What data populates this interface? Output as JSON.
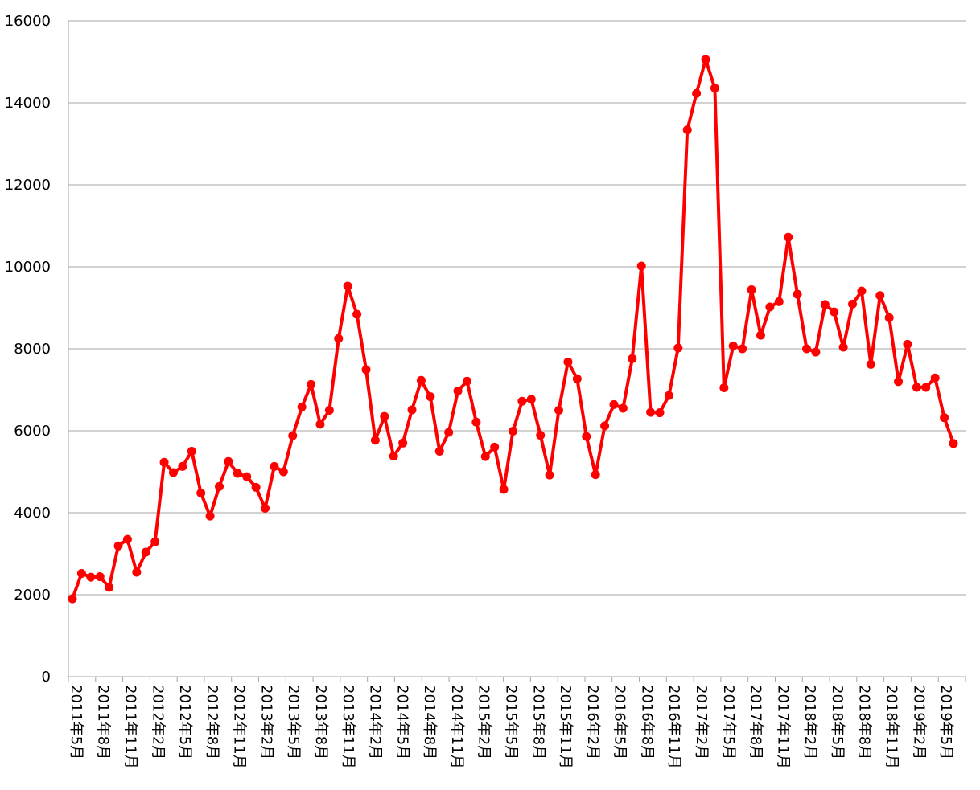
{
  "chart_data": {
    "type": "line",
    "title": "",
    "xlabel": "",
    "ylabel": "",
    "ylim": [
      0,
      16000
    ],
    "yticks": [
      0,
      2000,
      4000,
      6000,
      8000,
      10000,
      12000,
      14000,
      16000
    ],
    "grid": true,
    "legend": "none",
    "line_color": "#ff0000",
    "grid_color": "#a6a6a6",
    "axis_color": "#a6a6a6",
    "x_tick_labels": [
      "2011年5月",
      "2011年8月",
      "2011年11月",
      "2012年2月",
      "2012年5月",
      "2012年8月",
      "2012年11月",
      "2013年2月",
      "2013年5月",
      "2013年8月",
      "2013年11月",
      "2014年2月",
      "2014年5月",
      "2014年8月",
      "2014年11月",
      "2015年2月",
      "2015年5月",
      "2015年8月",
      "2015年11月",
      "2016年2月",
      "2016年5月",
      "2016年8月",
      "2016年11月",
      "2017年2月",
      "2017年5月",
      "2017年8月",
      "2017年11月",
      "2018年2月",
      "2018年5月",
      "2018年8月",
      "2018年11月",
      "2019年2月",
      "2019年5月"
    ],
    "x": [
      "2011-05",
      "2011-06",
      "2011-07",
      "2011-08",
      "2011-09",
      "2011-10",
      "2011-11",
      "2011-12",
      "2012-01",
      "2012-02",
      "2012-03",
      "2012-04",
      "2012-05",
      "2012-06",
      "2012-07",
      "2012-08",
      "2012-09",
      "2012-10",
      "2012-11",
      "2012-12",
      "2013-01",
      "2013-02",
      "2013-03",
      "2013-04",
      "2013-05",
      "2013-06",
      "2013-07",
      "2013-08",
      "2013-09",
      "2013-10",
      "2013-11",
      "2013-12",
      "2014-01",
      "2014-02",
      "2014-03",
      "2014-04",
      "2014-05",
      "2014-06",
      "2014-07",
      "2014-08",
      "2014-09",
      "2014-10",
      "2014-11",
      "2014-12",
      "2015-01",
      "2015-02",
      "2015-03",
      "2015-04",
      "2015-05",
      "2015-06",
      "2015-07",
      "2015-08",
      "2015-09",
      "2015-10",
      "2015-11",
      "2015-12",
      "2016-01",
      "2016-02",
      "2016-03",
      "2016-04",
      "2016-05",
      "2016-06",
      "2016-07",
      "2016-08",
      "2016-09",
      "2016-10",
      "2016-11",
      "2016-12",
      "2017-01",
      "2017-02",
      "2017-03",
      "2017-04",
      "2017-05",
      "2017-06",
      "2017-07",
      "2017-08",
      "2017-09",
      "2017-10",
      "2017-11",
      "2017-12",
      "2018-01",
      "2018-02",
      "2018-03",
      "2018-04",
      "2018-05",
      "2018-06",
      "2018-07",
      "2018-08",
      "2018-09",
      "2018-10",
      "2018-11",
      "2018-12",
      "2019-01",
      "2019-02",
      "2019-03",
      "2019-04",
      "2019-05"
    ],
    "series": [
      {
        "values": [
          1900,
          2520,
          2430,
          2440,
          2180,
          3190,
          3350,
          2550,
          3040,
          3290,
          5230,
          4980,
          5130,
          5500,
          4480,
          3920,
          4640,
          5250,
          4960,
          4880,
          4620,
          4110,
          5130,
          5000,
          5880,
          6580,
          7130,
          6160,
          6500,
          8250,
          9530,
          8840,
          7490,
          5770,
          6350,
          5380,
          5700,
          6510,
          7230,
          6830,
          5500,
          5960,
          6970,
          7210,
          6210,
          5370,
          5600,
          4570,
          5990,
          6720,
          6770,
          5890,
          4920,
          6500,
          7680,
          7270,
          5860,
          4930,
          6120,
          6640,
          6550,
          7760,
          10020,
          6450,
          6440,
          6860,
          8020,
          13340,
          14230,
          15060,
          14360,
          7050,
          8070,
          8000,
          9440,
          8330,
          9020,
          9150,
          10720,
          9330,
          8000,
          7920,
          9080,
          8900,
          8040,
          9090,
          9410,
          7620,
          9300,
          8760,
          7200,
          8110,
          7060,
          7060,
          7290,
          6320,
          5690
        ]
      }
    ]
  }
}
